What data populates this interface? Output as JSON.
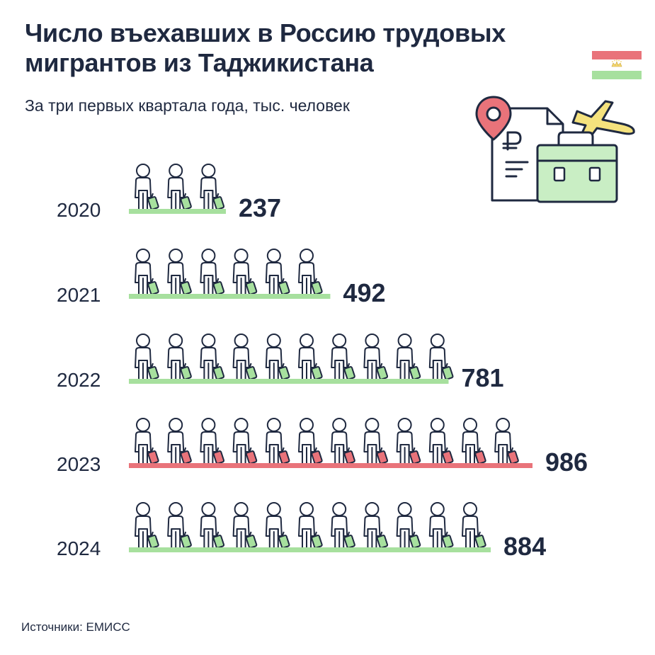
{
  "title": {
    "line1": "Число въехавших в Россию трудовых",
    "line2": "мигрантов из Таджикистана"
  },
  "subtitle": "За три первых квартала года, тыс. человек",
  "source": "Источники: ЕМИСС",
  "icons": [
    "tajikistan-flag-icon",
    "location-pin-icon",
    "document-ruble-icon",
    "briefcase-icon",
    "airplane-icon",
    "migrant-person-icon",
    "suitcase-icon"
  ],
  "colors": {
    "text": "#1f2940",
    "bar_normal": "#a7e09e",
    "bar_highlight": "#e9737a",
    "suitcase_normal": "#a7e09e",
    "suitcase_highlight": "#e9737a",
    "accent_yellow": "#f5e27d",
    "accent_red": "#e9737a",
    "accent_green": "#c9eec4"
  },
  "chart_data": {
    "type": "bar",
    "orientation": "horizontal",
    "style": "pictogram",
    "unit": "тыс. человек",
    "categories": [
      "2020",
      "2021",
      "2022",
      "2023",
      "2024"
    ],
    "values": [
      237,
      492,
      781,
      986,
      884
    ],
    "icon_counts": [
      3,
      6,
      10,
      12,
      11
    ],
    "highlight": "2023",
    "series": [
      {
        "values": [
          237,
          492,
          781,
          986,
          884
        ]
      }
    ],
    "value_labels": [
      "237",
      "492",
      "781",
      "986",
      "884"
    ]
  }
}
